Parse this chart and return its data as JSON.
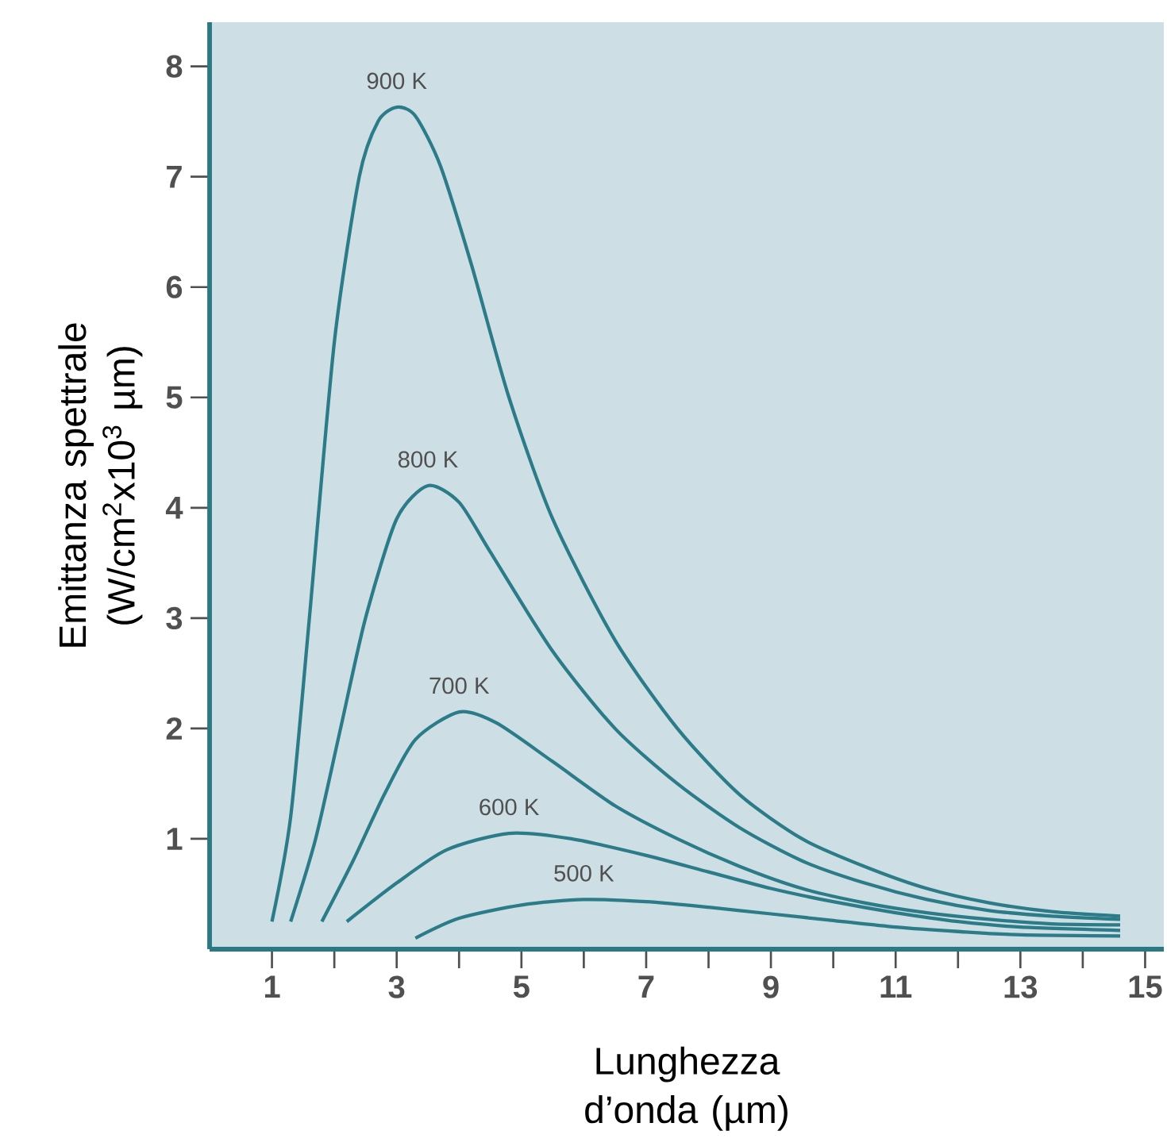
{
  "chart_data": {
    "type": "line",
    "xlabel": "Lunghezza d’onda (µm)",
    "ylabel": "Emittanza spettrale (W/cm$^{2}$x10$^{3}$ µm)",
    "xlim": [
      0,
      15.3
    ],
    "ylim": [
      0,
      8.4
    ],
    "xticks": [
      1,
      {
        "value": 2,
        "label": null
      },
      3,
      {
        "value": 4,
        "label": null
      },
      5,
      {
        "value": 6,
        "label": null
      },
      7,
      {
        "value": 8,
        "label": null
      },
      9,
      {
        "value": 10,
        "label": null
      },
      11,
      {
        "value": 12,
        "label": null
      },
      13,
      {
        "value": 14,
        "label": null
      },
      15
    ],
    "yticks": [
      1,
      2,
      3,
      4,
      5,
      6,
      7,
      8
    ],
    "grid": false,
    "marker": "none",
    "line_style": "solid",
    "series": [
      {
        "name": "900  K",
        "color": "#2b7c88",
        "x": [
          1.0,
          1.3,
          1.6,
          2.0,
          2.4,
          2.7,
          3.0,
          3.3,
          3.7,
          4.2,
          4.8,
          5.5,
          6.5,
          7.5,
          8.5,
          9.5,
          10.5,
          11.5,
          12.5,
          13.5,
          14.6
        ],
        "values": [
          0.25,
          1.2,
          3.0,
          5.5,
          7.0,
          7.5,
          7.63,
          7.55,
          7.1,
          6.2,
          5.0,
          3.9,
          2.8,
          2.0,
          1.4,
          1.0,
          0.75,
          0.55,
          0.42,
          0.34,
          0.3
        ]
      },
      {
        "name": "800 K",
        "color": "#2b7c88",
        "x": [
          1.3,
          1.7,
          2.1,
          2.5,
          3.0,
          3.5,
          4.0,
          4.5,
          5.5,
          6.5,
          7.5,
          8.5,
          9.5,
          10.5,
          11.5,
          12.5,
          13.5,
          14.6
        ],
        "values": [
          0.25,
          1.0,
          2.0,
          3.0,
          3.9,
          4.2,
          4.05,
          3.6,
          2.7,
          2.0,
          1.5,
          1.1,
          0.8,
          0.6,
          0.45,
          0.35,
          0.3,
          0.27
        ]
      },
      {
        "name": "700 K",
        "color": "#2b7c88",
        "x": [
          1.8,
          2.3,
          2.8,
          3.3,
          4.0,
          4.6,
          5.5,
          6.5,
          7.5,
          8.5,
          9.5,
          10.5,
          11.5,
          12.5,
          13.5,
          14.6
        ],
        "values": [
          0.25,
          0.8,
          1.4,
          1.9,
          2.15,
          2.05,
          1.7,
          1.3,
          1.0,
          0.75,
          0.55,
          0.42,
          0.33,
          0.27,
          0.23,
          0.22
        ]
      },
      {
        "name": "600 K",
        "color": "#2b7c88",
        "x": [
          2.2,
          3.0,
          3.8,
          4.8,
          5.8,
          7.0,
          8.0,
          9.0,
          10.0,
          11.0,
          12.0,
          13.0,
          14.6
        ],
        "values": [
          0.25,
          0.6,
          0.9,
          1.05,
          1.0,
          0.85,
          0.7,
          0.55,
          0.43,
          0.33,
          0.25,
          0.2,
          0.17
        ]
      },
      {
        "name": "500 K",
        "color": "#2b7c88",
        "x": [
          3.3,
          4.0,
          5.0,
          6.0,
          7.0,
          8.0,
          9.0,
          10.0,
          11.0,
          12.0,
          13.0,
          14.6
        ],
        "values": [
          0.1,
          0.28,
          0.4,
          0.45,
          0.43,
          0.38,
          0.32,
          0.26,
          0.2,
          0.16,
          0.13,
          0.12
        ]
      }
    ]
  }
}
